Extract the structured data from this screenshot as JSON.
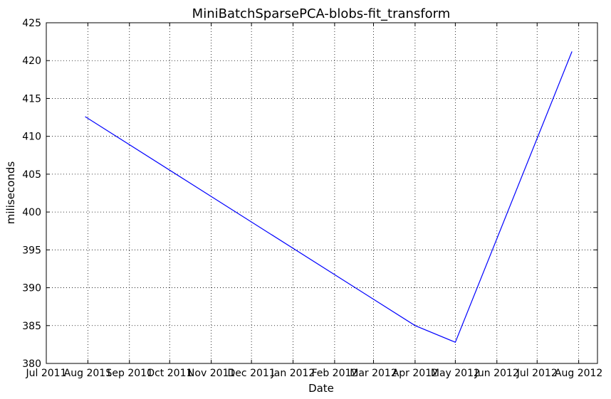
{
  "chart_data": {
    "type": "line",
    "title": "MiniBatchSparsePCA-blobs-fit_transform",
    "xlabel": "Date",
    "ylabel": "miliseconds",
    "x_tick_labels": [
      "Jul 2011",
      "Aug 2011",
      "Sep 2011",
      "Oct 2011",
      "Nov 2011",
      "Dec 2011",
      "Jan 2012",
      "Feb 2012",
      "Mar 2012",
      "Apr 2012",
      "May 2012",
      "Jun 2012",
      "Jul 2012",
      "Aug 2012"
    ],
    "x_tick_dates": [
      "2011-07-01",
      "2011-08-01",
      "2011-09-01",
      "2011-10-01",
      "2011-11-01",
      "2011-12-01",
      "2012-01-01",
      "2012-02-01",
      "2012-03-01",
      "2012-04-01",
      "2012-05-01",
      "2012-06-01",
      "2012-07-01",
      "2012-08-01"
    ],
    "xlim": [
      "2011-07-01",
      "2012-08-15"
    ],
    "ylim": [
      380,
      425
    ],
    "y_ticks": [
      380,
      385,
      390,
      395,
      400,
      405,
      410,
      415,
      420,
      425
    ],
    "grid": true,
    "series": [
      {
        "color": "#0000ff",
        "x": [
          "2011-07-30",
          "2012-04-01",
          "2012-05-01",
          "2012-07-27"
        ],
        "y": [
          412.6,
          385.0,
          382.8,
          421.2
        ]
      }
    ]
  }
}
